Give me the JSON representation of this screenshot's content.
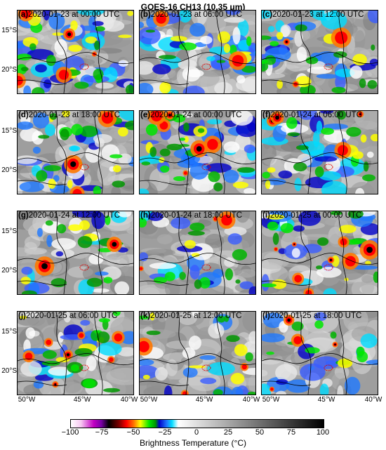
{
  "figure": {
    "title": "GOES-16 CH13 (10.35 μm)",
    "panels": [
      {
        "letter": "(a)",
        "time": "2020-01-23 at 00:00 UTC",
        "cloud": 0.75,
        "deep": 0.45,
        "core": 0.12,
        "seed": 11
      },
      {
        "letter": "(b)",
        "time": "2020-01-23 at 06:00 UTC",
        "cloud": 0.85,
        "deep": 0.25,
        "core": 0.04,
        "seed": 23
      },
      {
        "letter": "(c)",
        "time": "2020-01-23 at 12:00 UTC",
        "cloud": 0.55,
        "deep": 0.35,
        "core": 0.08,
        "seed": 37
      },
      {
        "letter": "(d)",
        "time": "2020-01-23 at 18:00 UTC",
        "cloud": 0.6,
        "deep": 0.4,
        "core": 0.08,
        "seed": 41
      },
      {
        "letter": "(e)",
        "time": "2020-01-24 at 00:00 UTC",
        "cloud": 0.65,
        "deep": 0.45,
        "core": 0.15,
        "seed": 53
      },
      {
        "letter": "(f)",
        "time": "2020-01-24 at 06:00 UTC",
        "cloud": 0.6,
        "deep": 0.35,
        "core": 0.1,
        "seed": 67
      },
      {
        "letter": "(g)",
        "time": "2020-01-24 at 12:00 UTC",
        "cloud": 0.4,
        "deep": 0.3,
        "core": 0.06,
        "seed": 71
      },
      {
        "letter": "(h)",
        "time": "2020-01-24 at 18:00 UTC",
        "cloud": 0.35,
        "deep": 0.25,
        "core": 0.08,
        "seed": 83
      },
      {
        "letter": "(i)",
        "time": "2020-01-25 at 00:00 UTC",
        "cloud": 0.45,
        "deep": 0.35,
        "core": 0.2,
        "seed": 97
      },
      {
        "letter": "(j)",
        "time": "2020-01-25 at 06:00 UTC",
        "cloud": 0.45,
        "deep": 0.35,
        "core": 0.18,
        "seed": 101
      },
      {
        "letter": "(k)",
        "time": "2020-01-25 at 12:00 UTC",
        "cloud": 0.35,
        "deep": 0.25,
        "core": 0.08,
        "seed": 113
      },
      {
        "letter": "(l)",
        "time": "2020-01-25 at 18:00 UTC",
        "cloud": 0.4,
        "deep": 0.2,
        "core": 0.1,
        "seed": 127
      }
    ],
    "lat_labels": [
      "15°S",
      "20°S"
    ],
    "lon_labels": [
      "50°W",
      "45°W",
      "40°W"
    ],
    "colorbar": {
      "ticks": [
        "−100",
        "−75",
        "−50",
        "−25",
        "0",
        "25",
        "50",
        "75",
        "100"
      ],
      "label": "Brightness Temperature (°C)",
      "stops": [
        {
          "t": -100,
          "c": "#ffffff"
        },
        {
          "t": -92,
          "c": "#f7c8f2"
        },
        {
          "t": -82,
          "c": "#c200c2"
        },
        {
          "t": -76,
          "c": "#7a00a8"
        },
        {
          "t": -70,
          "c": "#000000"
        },
        {
          "t": -62,
          "c": "#7a0000"
        },
        {
          "t": -56,
          "c": "#ff0000"
        },
        {
          "t": -50,
          "c": "#ff7800"
        },
        {
          "t": -45,
          "c": "#ffff00"
        },
        {
          "t": -38,
          "c": "#00e600"
        },
        {
          "t": -33,
          "c": "#009600"
        },
        {
          "t": -30,
          "c": "#0000c8"
        },
        {
          "t": -24,
          "c": "#1e78ff"
        },
        {
          "t": -20,
          "c": "#00dcff"
        },
        {
          "t": -15,
          "c": "#ffffff"
        },
        {
          "t": 100,
          "c": "#000000"
        }
      ]
    }
  }
}
